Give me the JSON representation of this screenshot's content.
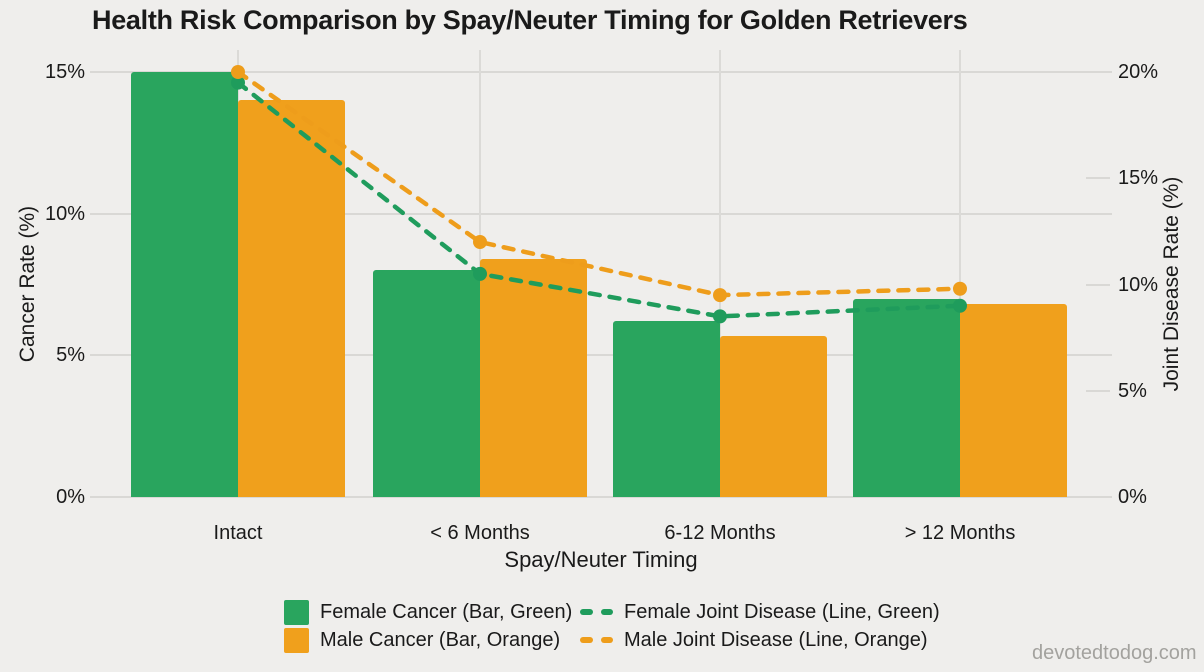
{
  "title": "Health Risk Comparison by Spay/Neuter Timing for Golden Retrievers",
  "watermark": "devotedtodog.com",
  "chart_data": {
    "type": "bar",
    "subtype": "grouped bars with dashed line overlay, dual y-axis",
    "categories": [
      "Intact",
      "< 6 Months",
      "6-12 Months",
      "> 12 Months"
    ],
    "xlabel": "Spay/Neuter Timing",
    "axes": {
      "left": {
        "label": "Cancer Rate (%)",
        "ticks": [
          "0%",
          "5%",
          "10%",
          "15%"
        ],
        "lim": [
          0,
          15
        ]
      },
      "right": {
        "label": "Joint Disease Rate (%)",
        "ticks": [
          "0%",
          "5%",
          "10%",
          "15%",
          "20%"
        ],
        "lim": [
          0,
          20
        ]
      }
    },
    "series": [
      {
        "name": "Female Cancer",
        "kind": "bar",
        "axis": "left",
        "color": "#29A55E",
        "values": [
          15,
          8,
          6.2,
          7
        ]
      },
      {
        "name": "Male Cancer",
        "kind": "bar",
        "axis": "left",
        "color": "#F0A01C",
        "values": [
          14,
          8.4,
          5.7,
          6.8
        ]
      },
      {
        "name": "Female Joint Disease",
        "kind": "line",
        "axis": "right",
        "color": "#1F9C5C",
        "values": [
          19.5,
          10.5,
          8.5,
          9
        ]
      },
      {
        "name": "Male Joint Disease",
        "kind": "line",
        "axis": "right",
        "color": "#EE9D1B",
        "values": [
          20,
          12,
          9.5,
          9.8
        ]
      }
    ],
    "legend": {
      "position": "bottom",
      "entries": [
        {
          "label": "Female Cancer (Bar, Green)",
          "swatch": "bar",
          "color": "#29A55E"
        },
        {
          "label": "Male Cancer (Bar, Orange)",
          "swatch": "bar",
          "color": "#F0A01C"
        },
        {
          "label": "Female Joint Disease (Line, Green)",
          "swatch": "line",
          "color": "#1F9C5C"
        },
        {
          "label": "Male Joint Disease (Line, Orange)",
          "swatch": "line",
          "color": "#EE9D1B"
        }
      ]
    },
    "grid": true
  }
}
